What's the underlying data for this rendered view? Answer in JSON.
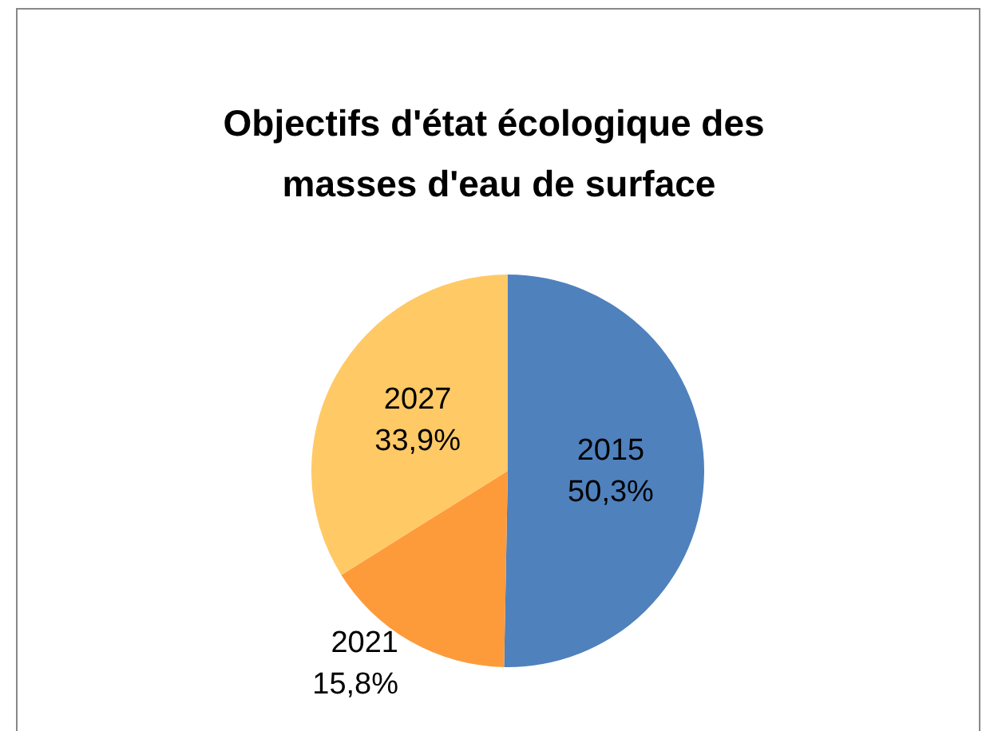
{
  "chart_data": {
    "type": "pie",
    "title": "Objectifs d'état écologique des masses d'eau de surface",
    "categories": [
      "2015",
      "2021",
      "2027"
    ],
    "values": [
      50.3,
      15.8,
      33.9
    ],
    "value_labels": [
      "50,3%",
      "15,8%",
      "33,9%"
    ],
    "colors": [
      "#4f81bd",
      "#fd9b3b",
      "#ffc966"
    ],
    "legend": false
  }
}
